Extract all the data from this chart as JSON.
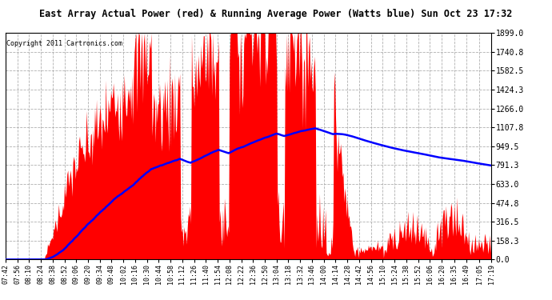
{
  "title": "East Array Actual Power (red) & Running Average Power (Watts blue) Sun Oct 23 17:32",
  "copyright": "Copyright 2011 Cartronics.com",
  "ylabel_right_ticks": [
    0.0,
    158.3,
    316.5,
    474.8,
    633.0,
    791.3,
    949.5,
    1107.8,
    1266.0,
    1424.3,
    1582.5,
    1740.8,
    1899.0
  ],
  "ymax": 1899.0,
  "ymin": 0.0,
  "bg_color": "#ffffff",
  "grid_color": "#b0b0b0",
  "grid_style": "--",
  "bar_color": "#ff0000",
  "avg_color": "#0000ff",
  "title_bg": "#c0c0c0",
  "x_tick_labels": [
    "07:42",
    "07:56",
    "08:10",
    "08:24",
    "08:38",
    "08:52",
    "09:06",
    "09:20",
    "09:34",
    "09:48",
    "10:02",
    "10:16",
    "10:30",
    "10:44",
    "10:58",
    "11:12",
    "11:26",
    "11:40",
    "11:54",
    "12:08",
    "12:22",
    "12:36",
    "12:50",
    "13:04",
    "13:18",
    "13:32",
    "13:46",
    "14:00",
    "14:14",
    "14:28",
    "14:42",
    "14:56",
    "15:10",
    "15:24",
    "15:38",
    "15:52",
    "16:06",
    "16:20",
    "16:35",
    "16:49",
    "17:05",
    "17:19"
  ],
  "start_hhmm": "07:42",
  "end_hhmm": "17:19"
}
